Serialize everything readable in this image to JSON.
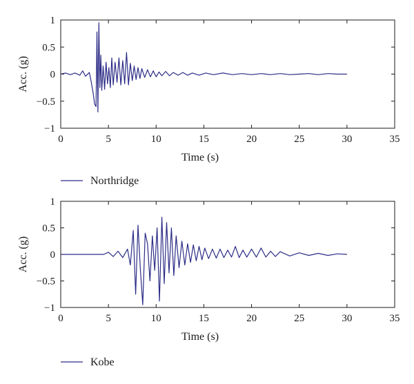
{
  "chart_data": [
    {
      "type": "line",
      "xlabel": "Time (s)",
      "ylabel": "Acc. (g)",
      "xlim": [
        0,
        35
      ],
      "ylim": [
        -1,
        1
      ],
      "xticks": [
        0,
        5,
        10,
        15,
        20,
        25,
        30,
        35
      ],
      "yticks": [
        1,
        0.5,
        0,
        -0.5,
        -1
      ],
      "xtick_labels": [
        "0",
        "5",
        "10",
        "15",
        "20",
        "25",
        "30",
        "35"
      ],
      "ytick_labels": [
        "1",
        "0.5",
        "0",
        "−0.5",
        "−1"
      ],
      "grid": false,
      "legend_placement": "below",
      "series": [
        {
          "name": "Northridge",
          "color": "#2b2b86",
          "x": [
            0,
            0.5,
            1.0,
            1.5,
            2.0,
            2.3,
            2.6,
            3.0,
            3.2,
            3.4,
            3.55,
            3.7,
            3.8,
            3.9,
            4.0,
            4.1,
            4.2,
            4.3,
            4.45,
            4.6,
            4.75,
            4.9,
            5.05,
            5.2,
            5.35,
            5.5,
            5.7,
            5.9,
            6.1,
            6.3,
            6.5,
            6.7,
            6.9,
            7.1,
            7.3,
            7.5,
            7.7,
            7.9,
            8.1,
            8.3,
            8.5,
            8.8,
            9.1,
            9.4,
            9.7,
            10.0,
            10.3,
            10.6,
            11.0,
            11.4,
            11.8,
            12.3,
            12.8,
            13.3,
            13.8,
            14.5,
            15.2,
            16.0,
            17.0,
            18.0,
            19.0,
            20.0,
            21.0,
            22.0,
            23.0,
            24.0,
            25.0,
            26.0,
            27.0,
            28.0,
            29.0,
            30.0
          ],
          "values": [
            0.0,
            0.02,
            -0.01,
            0.02,
            -0.02,
            0.06,
            -0.04,
            0.03,
            -0.15,
            -0.35,
            -0.55,
            -0.6,
            0.78,
            -0.7,
            0.95,
            -0.25,
            0.35,
            -0.3,
            0.15,
            -0.28,
            0.22,
            -0.18,
            0.12,
            -0.25,
            0.3,
            -0.2,
            0.22,
            -0.15,
            0.3,
            -0.2,
            0.25,
            -0.18,
            0.4,
            -0.2,
            0.2,
            -0.12,
            0.15,
            -0.1,
            0.12,
            -0.08,
            0.1,
            -0.06,
            0.08,
            -0.05,
            0.06,
            -0.05,
            0.04,
            -0.03,
            0.05,
            -0.03,
            0.03,
            -0.02,
            0.03,
            -0.02,
            0.02,
            -0.02,
            0.02,
            -0.01,
            0.02,
            -0.01,
            0.01,
            -0.01,
            0.01,
            -0.01,
            0.01,
            -0.01,
            0.0,
            0.01,
            -0.01,
            0.01,
            0.0,
            0.0
          ]
        }
      ]
    },
    {
      "type": "line",
      "xlabel": "Time (s)",
      "ylabel": "Acc. (g)",
      "xlim": [
        0,
        35
      ],
      "ylim": [
        -1,
        1
      ],
      "xticks": [
        0,
        5,
        10,
        15,
        20,
        25,
        30,
        35
      ],
      "yticks": [
        1,
        0.5,
        0,
        -0.5,
        -1
      ],
      "xtick_labels": [
        "0",
        "5",
        "10",
        "15",
        "20",
        "25",
        "30",
        "35"
      ],
      "ytick_labels": [
        "1",
        "0.5",
        "0",
        "−0.5",
        "−1"
      ],
      "grid": false,
      "legend_placement": "below",
      "series": [
        {
          "name": "Kobe",
          "color": "#2b2b86",
          "x": [
            0,
            1,
            2,
            3,
            4,
            4.5,
            5.0,
            5.5,
            6.0,
            6.5,
            7.0,
            7.3,
            7.6,
            7.85,
            8.1,
            8.35,
            8.6,
            8.85,
            9.1,
            9.35,
            9.6,
            9.85,
            10.1,
            10.35,
            10.6,
            10.85,
            11.1,
            11.35,
            11.6,
            11.85,
            12.1,
            12.4,
            12.7,
            13.0,
            13.3,
            13.6,
            13.9,
            14.2,
            14.5,
            14.8,
            15.1,
            15.5,
            15.9,
            16.3,
            16.7,
            17.1,
            17.5,
            17.9,
            18.3,
            18.7,
            19.1,
            19.5,
            20.0,
            20.5,
            21.0,
            21.5,
            22.0,
            22.5,
            23.0,
            24.0,
            25.0,
            26.0,
            27.0,
            28.0,
            29.0,
            30.0
          ],
          "values": [
            0.0,
            0.0,
            0.0,
            0.0,
            0.0,
            0.0,
            0.04,
            -0.04,
            0.06,
            -0.06,
            0.1,
            -0.2,
            0.45,
            -0.75,
            0.55,
            -0.3,
            -0.95,
            0.4,
            0.2,
            -0.5,
            0.35,
            -0.3,
            0.5,
            -0.88,
            0.7,
            -0.55,
            0.6,
            -0.35,
            0.5,
            -0.4,
            0.35,
            -0.25,
            0.25,
            -0.2,
            0.2,
            -0.15,
            0.18,
            -0.12,
            0.15,
            -0.1,
            0.12,
            -0.08,
            0.1,
            -0.07,
            0.1,
            -0.06,
            0.08,
            -0.05,
            0.15,
            -0.06,
            0.08,
            -0.05,
            0.1,
            -0.05,
            0.12,
            -0.05,
            0.06,
            -0.04,
            0.05,
            -0.03,
            0.03,
            -0.02,
            0.02,
            -0.02,
            0.01,
            0.0
          ]
        }
      ]
    }
  ]
}
